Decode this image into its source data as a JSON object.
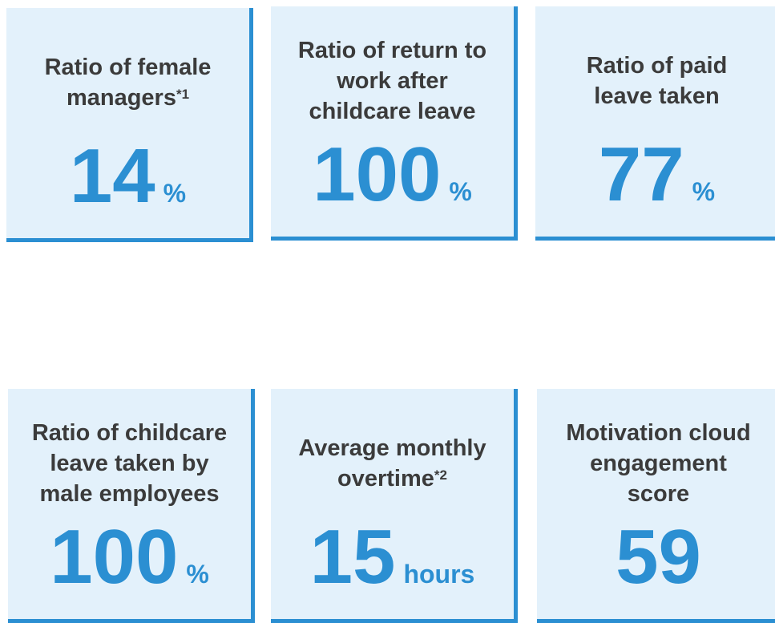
{
  "cards": [
    {
      "title_lines": [
        "Ratio of female",
        "managers"
      ],
      "note": "*1",
      "value": 14,
      "unit": "%"
    },
    {
      "title_lines": [
        "Ratio of return to",
        "work after",
        "childcare leave"
      ],
      "value": 100,
      "unit": "%"
    },
    {
      "title_lines": [
        "Ratio of paid",
        "leave taken"
      ],
      "value": 77,
      "unit": "%"
    },
    {
      "title_lines": [
        "Ratio of childcare",
        "leave taken by",
        "male employees"
      ],
      "value": 100,
      "unit": "%"
    },
    {
      "title_lines": [
        "Average monthly",
        "overtime"
      ],
      "note": "*2",
      "value": 15,
      "unit": "hours"
    },
    {
      "title_lines": [
        "Motivation cloud",
        "engagement",
        "score"
      ],
      "value": 59
    }
  ]
}
